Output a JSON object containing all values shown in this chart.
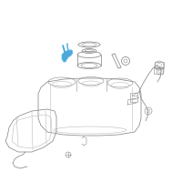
{
  "bg_color": "#ffffff",
  "line_color": "#888888",
  "dark_color": "#666666",
  "light_color": "#bbbbbb",
  "blue_color": "#3d9fd4",
  "blue2_color": "#5bbce8",
  "figsize": [
    2.0,
    2.0
  ],
  "dpi": 100
}
